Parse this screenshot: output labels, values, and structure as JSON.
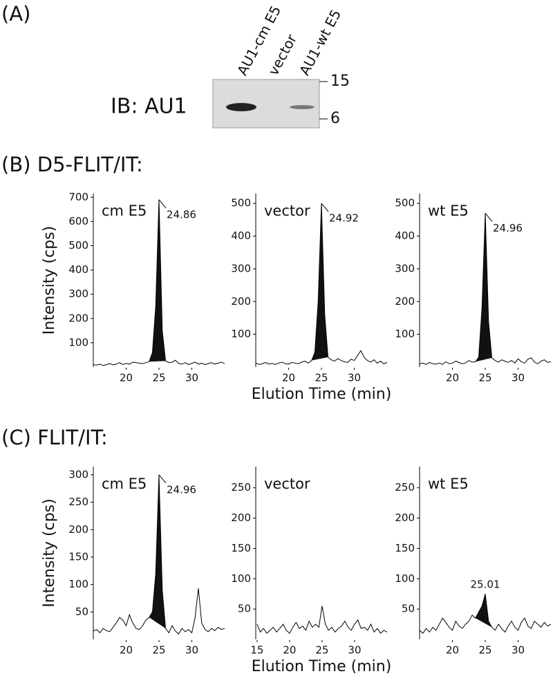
{
  "figure": {
    "panel_a": {
      "label": "(A)",
      "lanes": [
        "AU1-cm E5",
        "vector",
        "AU1-wt E5"
      ],
      "blot_label": "IB: AU1",
      "markers": [
        15,
        6
      ]
    },
    "panel_b_title": "(B) D5-FLIT/IT:",
    "panel_c_title": "(C) FLIT/IT:"
  },
  "chart_data": [
    {
      "type": "line",
      "label": "cm E5",
      "annotation": "24.86",
      "ylabel": "Intensity (cps)",
      "color": "#000000",
      "x": [
        15,
        15.5,
        16,
        16.5,
        17,
        17.5,
        18,
        18.5,
        19,
        19.5,
        20,
        20.5,
        21,
        21.5,
        22,
        22.5,
        23,
        23.5,
        24,
        24.5,
        25,
        25.5,
        26,
        26.5,
        27,
        27.5,
        28,
        28.5,
        29,
        29.5,
        30,
        30.5,
        31,
        31.5,
        32,
        32.5,
        33,
        33.5,
        34,
        34.5,
        35
      ],
      "values": [
        10,
        8,
        12,
        6,
        10,
        14,
        9,
        12,
        18,
        10,
        15,
        12,
        20,
        18,
        16,
        14,
        18,
        22,
        60,
        250,
        690,
        150,
        25,
        18,
        20,
        28,
        15,
        12,
        18,
        10,
        15,
        20,
        12,
        16,
        10,
        14,
        18,
        12,
        16,
        20,
        14
      ],
      "xlim": [
        15,
        35
      ],
      "ylim": [
        0,
        715
      ],
      "xticks": [
        20,
        25,
        30
      ],
      "yticks": [
        100,
        200,
        300,
        400,
        500,
        600,
        700
      ]
    },
    {
      "type": "line",
      "label": "vector",
      "annotation": "24.92",
      "xlabel": "Elution Time (min)",
      "color": "#000000",
      "x": [
        15,
        15.5,
        16,
        16.5,
        17,
        17.5,
        18,
        18.5,
        19,
        19.5,
        20,
        20.5,
        21,
        21.5,
        22,
        22.5,
        23,
        23.5,
        24,
        24.5,
        25,
        25.5,
        26,
        26.5,
        27,
        27.5,
        28,
        28.5,
        29,
        29.5,
        30,
        30.5,
        31,
        31.5,
        32,
        32.5,
        33,
        33.5,
        34,
        34.5,
        35
      ],
      "values": [
        12,
        8,
        10,
        14,
        9,
        11,
        8,
        12,
        15,
        10,
        9,
        14,
        12,
        10,
        15,
        18,
        12,
        20,
        45,
        200,
        500,
        160,
        30,
        22,
        18,
        26,
        20,
        16,
        14,
        24,
        20,
        35,
        50,
        30,
        20,
        15,
        22,
        12,
        18,
        10,
        14
      ],
      "xlim": [
        15,
        35
      ],
      "ylim": [
        0,
        530
      ],
      "xticks": [
        20,
        25,
        30
      ],
      "yticks": [
        100,
        200,
        300,
        400,
        500
      ]
    },
    {
      "type": "line",
      "label": "wt E5",
      "annotation": "24.96",
      "color": "#000000",
      "x": [
        15,
        15.5,
        16,
        16.5,
        17,
        17.5,
        18,
        18.5,
        19,
        19.5,
        20,
        20.5,
        21,
        21.5,
        22,
        22.5,
        23,
        23.5,
        24,
        24.5,
        25,
        25.5,
        26,
        26.5,
        27,
        27.5,
        28,
        28.5,
        29,
        29.5,
        30,
        30.5,
        31,
        31.5,
        32,
        32.5,
        33,
        33.5,
        34,
        34.5,
        35
      ],
      "values": [
        10,
        12,
        8,
        14,
        10,
        9,
        12,
        8,
        16,
        10,
        12,
        18,
        14,
        10,
        12,
        20,
        15,
        16,
        30,
        180,
        470,
        140,
        28,
        20,
        15,
        22,
        18,
        14,
        20,
        12,
        25,
        16,
        12,
        24,
        28,
        15,
        10,
        18,
        22,
        14,
        16
      ],
      "xlim": [
        15,
        35
      ],
      "ylim": [
        0,
        530
      ],
      "xticks": [
        20,
        25,
        30
      ],
      "yticks": [
        100,
        200,
        300,
        400,
        500
      ]
    },
    {
      "type": "line",
      "label": "cm E5",
      "annotation": "24.96",
      "ylabel": "Intensity (cps)",
      "color": "#000000",
      "x": [
        15,
        15.5,
        16,
        16.5,
        17,
        17.5,
        18,
        18.5,
        19,
        19.5,
        20,
        20.5,
        21,
        21.5,
        22,
        22.5,
        23,
        23.5,
        24,
        24.5,
        25,
        25.5,
        26,
        26.5,
        27,
        27.5,
        28,
        28.5,
        29,
        29.5,
        30,
        30.5,
        31,
        31.5,
        32,
        32.5,
        33,
        33.5,
        34,
        34.5,
        35
      ],
      "values": [
        15,
        18,
        12,
        20,
        16,
        14,
        22,
        30,
        40,
        35,
        25,
        45,
        30,
        20,
        18,
        25,
        35,
        40,
        50,
        120,
        300,
        90,
        20,
        12,
        25,
        15,
        10,
        20,
        14,
        18,
        12,
        40,
        93,
        30,
        18,
        14,
        20,
        16,
        22,
        18,
        20
      ],
      "xlim": [
        15,
        35
      ],
      "ylim": [
        0,
        315
      ],
      "xticks": [
        20,
        25,
        30
      ],
      "yticks": [
        50,
        100,
        150,
        200,
        250,
        300
      ]
    },
    {
      "type": "line",
      "label": "vector",
      "xlabel": "Elution Time (min)",
      "color": "#000000",
      "x": [
        15,
        15.5,
        16,
        16.5,
        17,
        17.5,
        18,
        18.5,
        19,
        19.5,
        20,
        20.5,
        21,
        21.5,
        22,
        22.5,
        23,
        23.5,
        24,
        24.5,
        25,
        25.5,
        26,
        26.5,
        27,
        27.5,
        28,
        28.5,
        29,
        29.5,
        30,
        30.5,
        31,
        31.5,
        32,
        32.5,
        33,
        33.5,
        34,
        34.5,
        35
      ],
      "values": [
        25,
        12,
        18,
        10,
        15,
        20,
        12,
        18,
        25,
        15,
        10,
        20,
        28,
        18,
        22,
        15,
        30,
        20,
        25,
        20,
        55,
        25,
        15,
        20,
        12,
        18,
        22,
        30,
        20,
        15,
        25,
        32,
        18,
        20,
        15,
        25,
        12,
        18,
        10,
        15,
        12
      ],
      "xlim": [
        14.8,
        35
      ],
      "ylim": [
        0,
        285
      ],
      "xticks": [
        15,
        20,
        25,
        30
      ],
      "yticks": [
        50,
        100,
        150,
        200,
        250
      ]
    },
    {
      "type": "line",
      "label": "wt E5",
      "annotation": "25.01",
      "color": "#000000",
      "x": [
        15,
        15.5,
        16,
        16.5,
        17,
        17.5,
        18,
        18.5,
        19,
        19.5,
        20,
        20.5,
        21,
        21.5,
        22,
        22.5,
        23,
        23.5,
        24,
        24.5,
        25,
        25.5,
        26,
        26.5,
        27,
        27.5,
        28,
        28.5,
        29,
        29.5,
        30,
        30.5,
        31,
        31.5,
        32,
        32.5,
        33,
        33.5,
        34,
        34.5,
        35
      ],
      "values": [
        15,
        10,
        18,
        12,
        20,
        15,
        25,
        35,
        28,
        20,
        15,
        30,
        22,
        18,
        25,
        30,
        40,
        35,
        45,
        55,
        75,
        30,
        20,
        15,
        25,
        18,
        12,
        22,
        30,
        20,
        15,
        28,
        35,
        22,
        18,
        30,
        25,
        20,
        28,
        22,
        25
      ],
      "xlim": [
        15,
        35
      ],
      "ylim": [
        0,
        285
      ],
      "xticks": [
        20,
        25,
        30
      ],
      "yticks": [
        50,
        100,
        150,
        200,
        250
      ]
    }
  ]
}
